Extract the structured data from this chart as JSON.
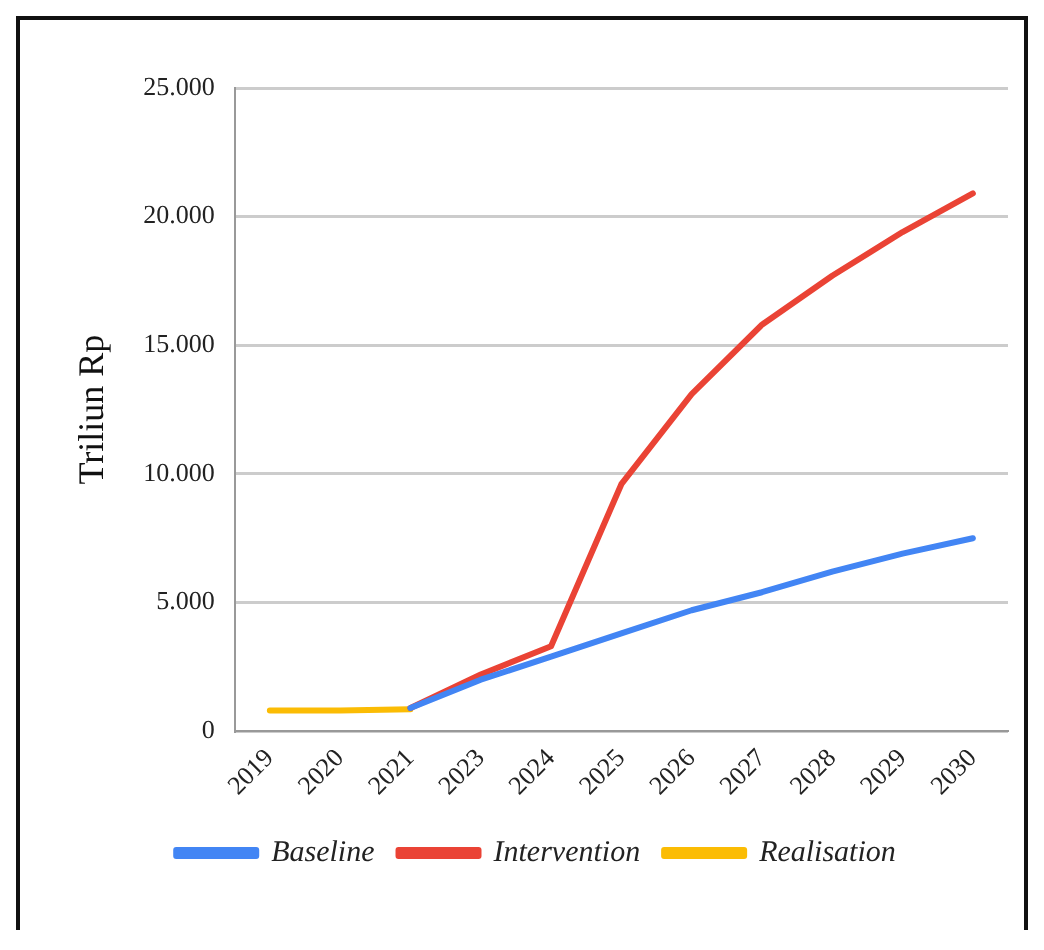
{
  "chart_data": {
    "type": "line",
    "ylabel": "Triliun Rp",
    "categories": [
      "2019",
      "2020",
      "2021",
      "2023",
      "2024",
      "2025",
      "2026",
      "2027",
      "2028",
      "2029",
      "2030"
    ],
    "series": [
      {
        "name": "Baseline",
        "color": "#4285f4",
        "values": [
          null,
          null,
          900,
          2000,
          2900,
          3800,
          4700,
          5400,
          6200,
          6900,
          7500
        ]
      },
      {
        "name": "Intervention",
        "color": "#ea4335",
        "values": [
          null,
          null,
          900,
          2200,
          3300,
          9600,
          13100,
          15800,
          17700,
          19400,
          20900
        ]
      },
      {
        "name": "Realisation",
        "color": "#fbbc04",
        "values": [
          800,
          800,
          850,
          null,
          null,
          null,
          null,
          null,
          null,
          null,
          null
        ]
      }
    ],
    "ylim": [
      0,
      25000
    ],
    "yticks": [
      {
        "value": 0,
        "label": "0"
      },
      {
        "value": 5000,
        "label": "5.000"
      },
      {
        "value": 10000,
        "label": "10.000"
      },
      {
        "value": 15000,
        "label": "15.000"
      },
      {
        "value": 20000,
        "label": "20.000"
      },
      {
        "value": 25000,
        "label": "25.000"
      }
    ],
    "grid": "y",
    "legend": "bottom",
    "marker": "none",
    "line_style": "solid"
  }
}
